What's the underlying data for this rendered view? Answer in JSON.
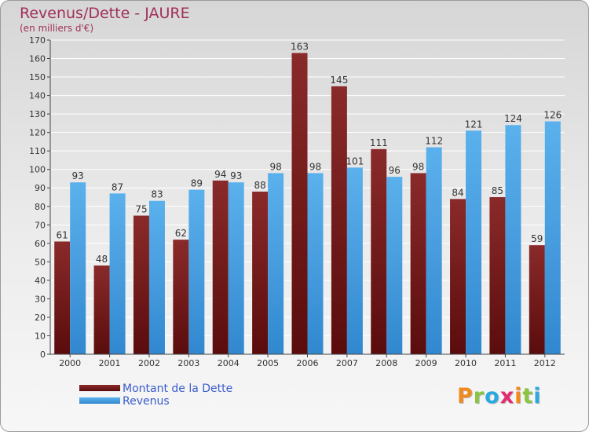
{
  "title": "Revenus/Dette - JAURE",
  "subtitle": "(en milliers d'€)",
  "legend": {
    "dette": "Montant de la Dette",
    "revenus": "Revenus"
  },
  "logo_text": "Proxiti",
  "logo_colors": [
    "#f08a1d",
    "#8bc53f",
    "#29a9e0",
    "#e32c6f",
    "#f08a1d",
    "#8bc53f",
    "#29a9e0"
  ],
  "colors": {
    "dette_top": "#8a2a2a",
    "dette_bottom": "#5a0c0c",
    "revenus_top": "#5bb1ec",
    "revenus_bottom": "#3288cf",
    "title": "#a0305a",
    "legend_text": "#3b5ccc"
  },
  "chart_data": {
    "type": "bar",
    "title": "Revenus/Dette - JAURE",
    "subtitle": "(en milliers d'€)",
    "categories": [
      "2000",
      "2001",
      "2002",
      "2003",
      "2004",
      "2005",
      "2006",
      "2007",
      "2008",
      "2009",
      "2010",
      "2011",
      "2012"
    ],
    "series": [
      {
        "name": "Montant de la Dette",
        "values": [
          61,
          48,
          75,
          62,
          94,
          88,
          163,
          145,
          111,
          98,
          84,
          85,
          59
        ]
      },
      {
        "name": "Revenus",
        "values": [
          93,
          87,
          83,
          89,
          93,
          98,
          98,
          101,
          96,
          112,
          121,
          124,
          126
        ]
      }
    ],
    "ylim": [
      0,
      170
    ],
    "yticks": [
      0,
      10,
      20,
      30,
      40,
      50,
      60,
      70,
      80,
      90,
      100,
      110,
      120,
      130,
      140,
      150,
      160,
      170
    ],
    "grid": true,
    "legend_position": "bottom-left",
    "data_labels": true
  }
}
